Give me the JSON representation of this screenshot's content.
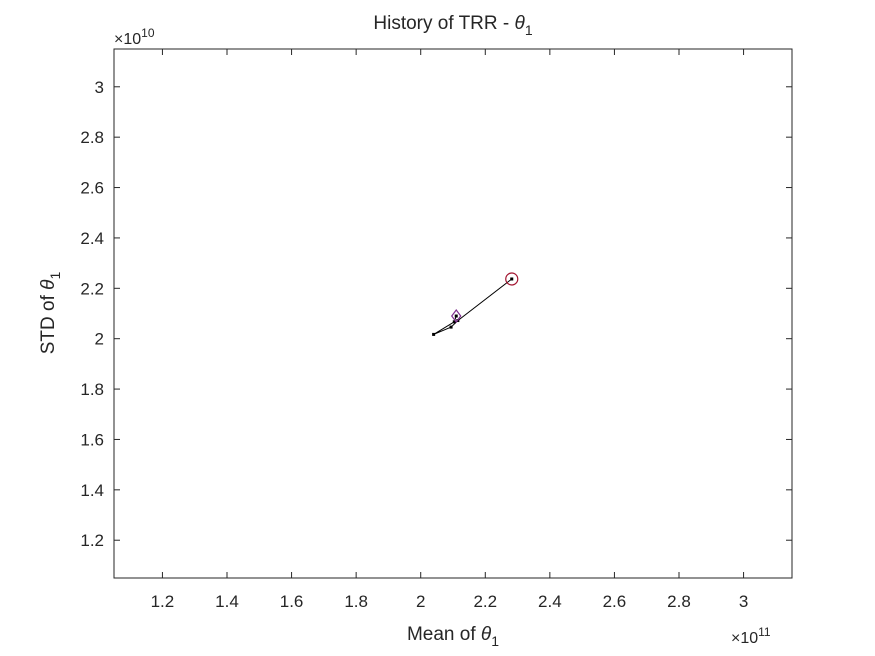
{
  "chart_data": {
    "type": "line",
    "title": "History of TRR - ",
    "title_symbol": "θ",
    "title_subscript": "1",
    "xlabel": "Mean of ",
    "xlabel_symbol": "θ",
    "xlabel_subscript": "1",
    "ylabel": "STD of ",
    "ylabel_symbol": "θ",
    "ylabel_subscript": "1",
    "x_multiplier": {
      "base": "×10",
      "exponent": "11"
    },
    "y_multiplier": {
      "base": "×10",
      "exponent": "10"
    },
    "xlim": [
      1.05,
      3.15
    ],
    "ylim": [
      1.05,
      3.15
    ],
    "xticks": [
      1.2,
      1.4,
      1.6,
      1.8,
      2.0,
      2.2,
      2.4,
      2.6,
      2.8,
      3.0
    ],
    "xtick_labels": [
      "1.2",
      "1.4",
      "1.6",
      "1.8",
      "2",
      "2.2",
      "2.4",
      "2.6",
      "2.8",
      "3"
    ],
    "yticks": [
      1.2,
      1.4,
      1.6,
      1.8,
      2.0,
      2.2,
      2.4,
      2.6,
      2.8,
      3.0
    ],
    "ytick_labels": [
      "1.2",
      "1.4",
      "1.6",
      "1.8",
      "2",
      "2.2",
      "2.4",
      "2.6",
      "2.8",
      "3"
    ],
    "grid": false,
    "series": [
      {
        "x": [
          2.282,
          2.115,
          2.094,
          2.04,
          2.104,
          2.11
        ],
        "y": [
          2.237,
          2.072,
          2.046,
          2.017,
          2.067,
          2.09
        ],
        "color": "#000000"
      }
    ],
    "markers": {
      "start": {
        "x": 2.282,
        "y": 2.237,
        "shape": "circle",
        "color": "#a2142f"
      },
      "end": {
        "x": 2.11,
        "y": 2.09,
        "shape": "diamond",
        "color": "#7e2f8e"
      }
    }
  }
}
